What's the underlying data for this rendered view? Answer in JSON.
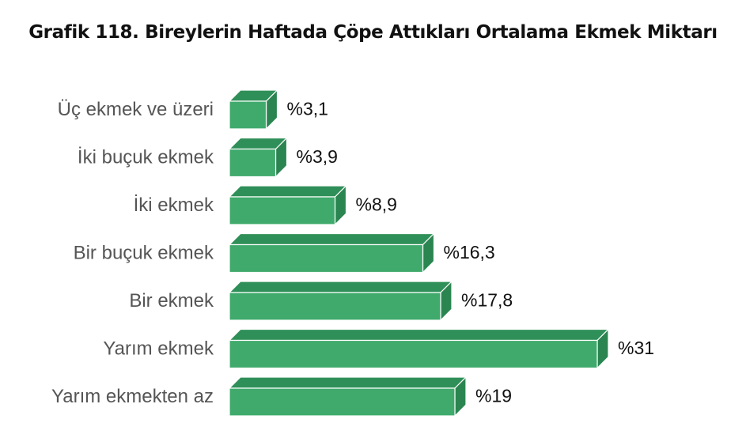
{
  "title": "Grafik 118. Bireylerin Haftada Çöpe Attıkları Ortalama Ekmek Miktarı",
  "colors": {
    "bar_front": "#3faa6c",
    "bar_top": "#2f8f58",
    "bar_side": "#2a8550",
    "bar_edge": "#ffffff"
  },
  "chart_data": {
    "type": "bar",
    "orientation": "horizontal",
    "title": "Grafik 118. Bireylerin Haftada Çöpe Attıkları Ortalama Ekmek Miktarı",
    "categories": [
      "Üç ekmek ve üzeri",
      "İki buçuk ekmek",
      "İki ekmek",
      "Bir buçuk ekmek",
      "Bir ekmek",
      "Yarım ekmek",
      "Yarım ekmekten az"
    ],
    "values": [
      3.1,
      3.9,
      8.9,
      16.3,
      17.8,
      31,
      19
    ],
    "value_labels": [
      "%3,1",
      "%3,9",
      "%8,9",
      "%16,3",
      "%17,8",
      "%31",
      "%19"
    ],
    "unit": "%",
    "xlim": [
      0,
      31
    ],
    "grid": false,
    "legend": "none",
    "style": "3d"
  }
}
